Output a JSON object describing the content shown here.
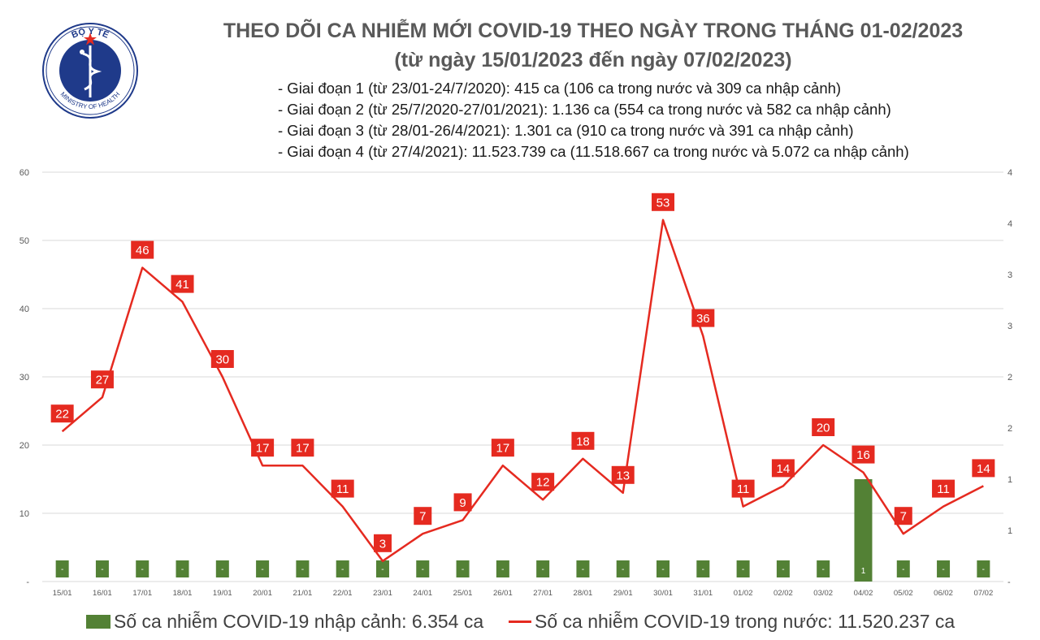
{
  "header": {
    "logo_text_top": "BỘ Y TẾ",
    "logo_text_bottom": "MINISTRY OF HEALTH",
    "title_line1": "THEO DÕI CA NHIỄM MỚI COVID-19 THEO NGÀY TRONG THÁNG 01-02/2023",
    "title_line2": "(từ ngày 15/01/2023 đến ngày 07/02/2023)"
  },
  "phases": [
    "- Giai đoạn 1 (từ 23/01-24/7/2020): 415 ca (106 ca trong nước và 309 ca nhập cảnh)",
    "- Giai đoạn 2 (từ 25/7/2020-27/01/2021): 1.136 ca (554 ca trong nước và 582 ca nhập cảnh)",
    "- Giai đoạn 3 (từ 28/01-26/4/2021): 1.301 ca (910 ca trong nước và 391 ca nhập cảnh)",
    "- Giai đoạn 4 (từ 27/4/2021): 11.523.739 ca (11.518.667 ca trong nước và 5.072 ca nhập cảnh)"
  ],
  "legend": {
    "bar_label": "Số ca nhiễm COVID-19 nhập cảnh: 6.354 ca",
    "line_label": "Số ca nhiễm COVID-19 trong nước: 11.520.237 ca"
  },
  "colors": {
    "line": "#e52a20",
    "label_bg": "#e52a20",
    "bar": "#538135",
    "grid": "#d9d9d9"
  },
  "chart_data": {
    "type": "bar+line",
    "categories": [
      "15/01",
      "16/01",
      "17/01",
      "18/01",
      "19/01",
      "20/01",
      "21/01",
      "22/01",
      "23/01",
      "24/01",
      "25/01",
      "26/01",
      "27/01",
      "28/01",
      "29/01",
      "30/01",
      "31/01",
      "01/02",
      "02/02",
      "03/02",
      "04/02",
      "05/02",
      "06/02",
      "07/02"
    ],
    "line_series": {
      "values": [
        22,
        27,
        46,
        41,
        30,
        17,
        17,
        11,
        3,
        7,
        9,
        17,
        12,
        18,
        13,
        53,
        36,
        11,
        14,
        20,
        16,
        7,
        11,
        14
      ]
    },
    "bar_series": {
      "values": [
        0,
        0,
        0,
        0,
        0,
        0,
        0,
        0,
        0,
        0,
        0,
        0,
        0,
        0,
        0,
        0,
        0,
        0,
        0,
        0,
        1,
        0,
        0,
        0
      ],
      "labels": [
        "-",
        "-",
        "-",
        "-",
        "-",
        "-",
        "-",
        "-",
        "-",
        "-",
        "-",
        "-",
        "-",
        "-",
        "-",
        "-",
        "-",
        "-",
        "-",
        "-",
        "1",
        "-",
        "-",
        "-"
      ]
    },
    "y_left": {
      "ticks": [
        "-",
        "10",
        "20",
        "30",
        "40",
        "50",
        "60"
      ],
      "ylim": [
        0,
        60
      ]
    },
    "y_right": {
      "ticks": [
        "-",
        "1",
        "1",
        "2",
        "2",
        "3",
        "3",
        "4",
        "4"
      ],
      "ylim": [
        0,
        4
      ]
    },
    "grid": true,
    "legend_position": "bottom"
  }
}
